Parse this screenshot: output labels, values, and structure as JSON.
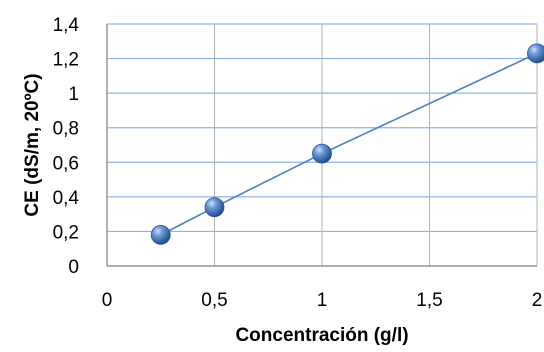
{
  "chart_data": {
    "type": "scatter",
    "title": "",
    "xlabel": "Concentración (g/l)",
    "ylabel": "CE (dS/m, 20ºC)",
    "xlim": [
      0,
      2
    ],
    "ylim": [
      0,
      1.4
    ],
    "x_ticks": [
      "0",
      "0,5",
      "1",
      "1,5",
      "2"
    ],
    "y_ticks": [
      "0",
      "0,2",
      "0,4",
      "0,6",
      "0,8",
      "1",
      "1,2",
      "1,4"
    ],
    "grid": true,
    "legend": "none",
    "series": [
      {
        "x": [
          0.25,
          0.5,
          1,
          2
        ],
        "y": [
          0.18,
          0.34,
          0.65,
          1.23
        ],
        "line": true,
        "color": "#4f81bd"
      }
    ]
  }
}
